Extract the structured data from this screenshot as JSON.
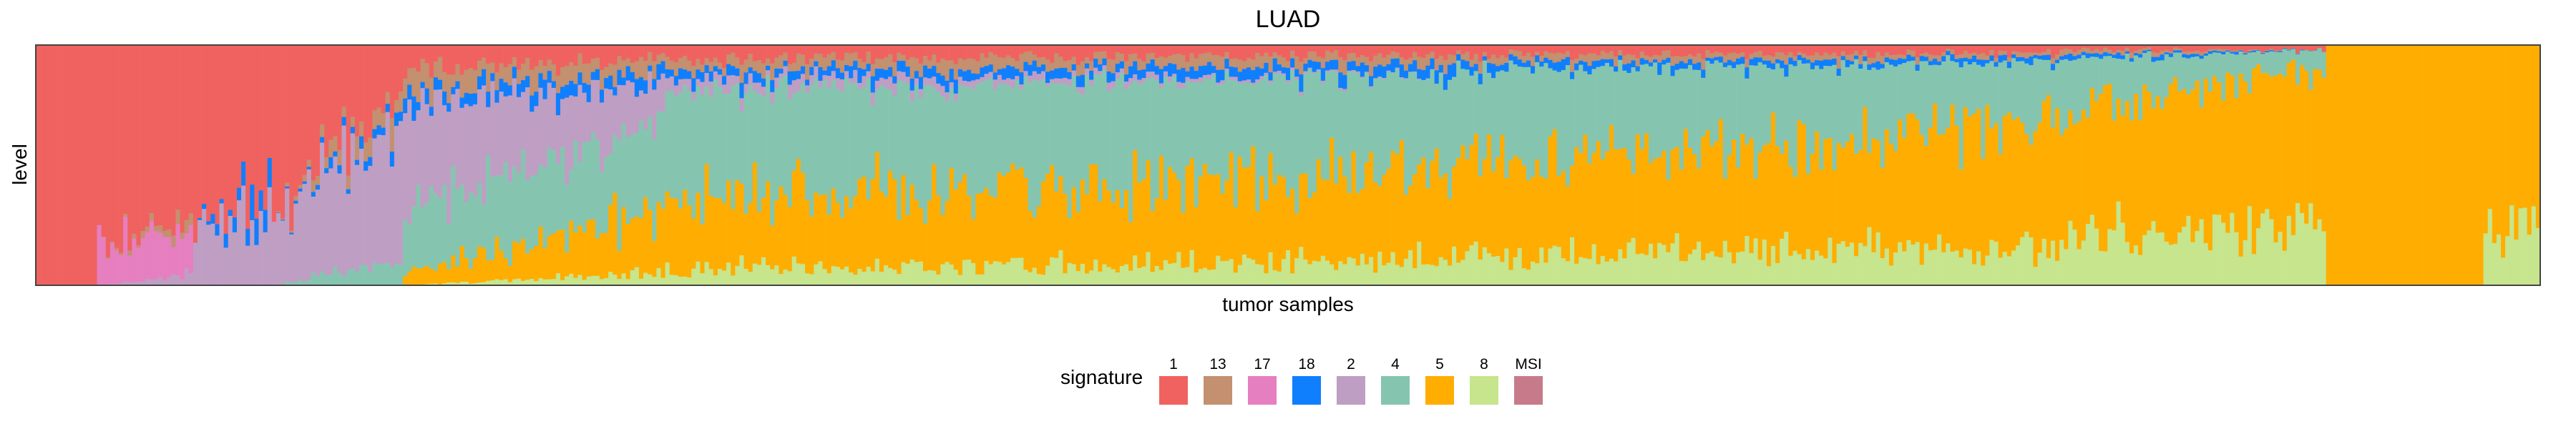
{
  "chart_data": {
    "type": "stacked-bar",
    "title": "LUAD",
    "xlabel": "tumor samples",
    "ylabel": "level",
    "ylim": [
      0,
      1
    ],
    "x_ticks": "none",
    "y_ticks": "none",
    "legend_title": "signature",
    "legend_placement": "bottom-center",
    "series": [
      {
        "name": "1",
        "color": "#F0625F"
      },
      {
        "name": "13",
        "color": "#C39070"
      },
      {
        "name": "17",
        "color": "#E67FC0"
      },
      {
        "name": "18",
        "color": "#0F7FFE"
      },
      {
        "name": "2",
        "color": "#BF9EC3"
      },
      {
        "name": "4",
        "color": "#85C5B0"
      },
      {
        "name": "5",
        "color": "#FFAD00"
      },
      {
        "name": "8",
        "color": "#C6E58C"
      },
      {
        "name": "MSI",
        "color": "#C77B8A"
      }
    ],
    "segments": [
      {
        "n": 14,
        "a": {
          "1": 1.0
        },
        "b": {
          "1": 1.0
        }
      },
      {
        "n": 22,
        "a": {
          "1": 0.8,
          "17": 0.2
        },
        "b": {
          "1": 0.7,
          "13": 0.05,
          "17": 0.2,
          "2": 0.05
        }
      },
      {
        "n": 18,
        "a": {
          "1": 0.75,
          "2": 0.25
        },
        "b": {
          "1": 0.6,
          "18": 0.1,
          "2": 0.3
        }
      },
      {
        "n": 30,
        "a": {
          "1": 0.7,
          "2": 0.3
        },
        "b": {
          "1": 0.2,
          "13": 0.1,
          "18": 0.05,
          "2": 0.55,
          "4": 0.1
        }
      },
      {
        "n": 60,
        "a": {
          "1": 0.1,
          "13": 0.1,
          "18": 0.05,
          "2": 0.45,
          "4": 0.25,
          "5": 0.05
        },
        "b": {
          "1": 0.05,
          "13": 0.05,
          "18": 0.05,
          "2": 0.15,
          "4": 0.4,
          "5": 0.25,
          "8": 0.05
        }
      },
      {
        "n": 180,
        "a": {
          "1": 0.06,
          "13": 0.05,
          "18": 0.04,
          "2": 0.05,
          "4": 0.45,
          "5": 0.28,
          "8": 0.07
        },
        "b": {
          "1": 0.04,
          "13": 0.04,
          "18": 0.04,
          "4": 0.42,
          "5": 0.36,
          "8": 0.1
        }
      },
      {
        "n": 140,
        "a": {
          "1": 0.04,
          "13": 0.03,
          "18": 0.03,
          "4": 0.4,
          "5": 0.38,
          "8": 0.12
        },
        "b": {
          "1": 0.03,
          "13": 0.02,
          "18": 0.02,
          "4": 0.27,
          "5": 0.5,
          "8": 0.16
        }
      },
      {
        "n": 60,
        "a": {
          "1": 0.02,
          "13": 0.02,
          "18": 0.02,
          "4": 0.22,
          "5": 0.52,
          "8": 0.2
        },
        "b": {
          "1": 0.02,
          "4": 0.08,
          "5": 0.65,
          "8": 0.25
        }
      },
      {
        "n": 36,
        "a": {
          "5": 1.0
        },
        "b": {
          "5": 1.0
        }
      },
      {
        "n": 13,
        "a": {
          "5": 0.8,
          "8": 0.2
        },
        "b": {
          "5": 0.7,
          "8": 0.3
        }
      }
    ]
  },
  "legend_items": [
    {
      "label": "1",
      "color": "#F0625F"
    },
    {
      "label": "13",
      "color": "#C39070"
    },
    {
      "label": "17",
      "color": "#E67FC0"
    },
    {
      "label": "18",
      "color": "#0F7FFE"
    },
    {
      "label": "2",
      "color": "#BF9EC3"
    },
    {
      "label": "4",
      "color": "#85C5B0"
    },
    {
      "label": "5",
      "color": "#FFAD00"
    },
    {
      "label": "8",
      "color": "#C6E58C"
    },
    {
      "label": "MSI",
      "color": "#C77B8A"
    }
  ]
}
